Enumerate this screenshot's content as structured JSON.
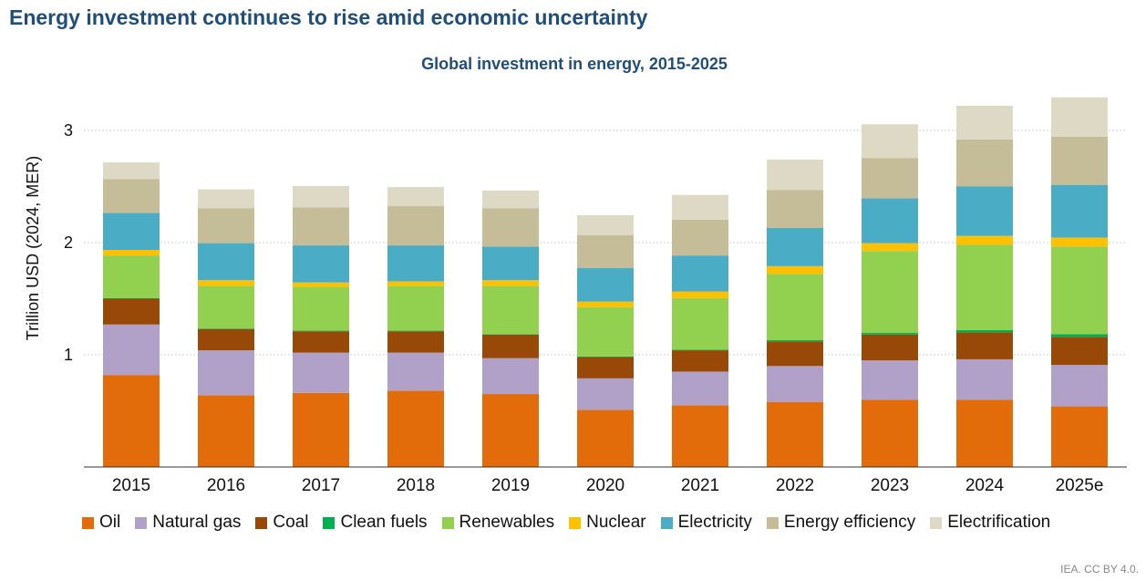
{
  "headline": "Energy investment continues to rise amid economic uncertainty",
  "credit": "IEA. CC BY 4.0.",
  "chart_data": {
    "type": "bar",
    "stacked": true,
    "title": "Global investment in energy, 2015-2025",
    "ylabel": "Trillion USD (2024, MER)",
    "xlabel": "",
    "ylim": [
      0,
      3.3
    ],
    "yticks": [
      1,
      2,
      3
    ],
    "grid": true,
    "legend_position": "bottom",
    "categories": [
      "2015",
      "2016",
      "2017",
      "2018",
      "2019",
      "2020",
      "2021",
      "2022",
      "2023",
      "2024",
      "2025e"
    ],
    "series": [
      {
        "name": "Oil",
        "color": "#e36c0a",
        "values": [
          0.82,
          0.64,
          0.66,
          0.68,
          0.65,
          0.51,
          0.55,
          0.58,
          0.6,
          0.6,
          0.54
        ]
      },
      {
        "name": "Natural gas",
        "color": "#b1a0c7",
        "values": [
          0.45,
          0.4,
          0.36,
          0.34,
          0.32,
          0.28,
          0.3,
          0.32,
          0.35,
          0.36,
          0.37
        ]
      },
      {
        "name": "Coal",
        "color": "#984807",
        "values": [
          0.23,
          0.19,
          0.19,
          0.19,
          0.21,
          0.19,
          0.19,
          0.22,
          0.23,
          0.24,
          0.25
        ]
      },
      {
        "name": "Clean fuels",
        "color": "#00b050",
        "values": [
          0.005,
          0.005,
          0.005,
          0.005,
          0.005,
          0.005,
          0.005,
          0.01,
          0.015,
          0.02,
          0.025
        ]
      },
      {
        "name": "Renewables",
        "color": "#92d050",
        "values": [
          0.38,
          0.38,
          0.39,
          0.4,
          0.43,
          0.44,
          0.46,
          0.59,
          0.73,
          0.76,
          0.78
        ]
      },
      {
        "name": "Nuclear",
        "color": "#ffc000",
        "values": [
          0.05,
          0.05,
          0.04,
          0.04,
          0.05,
          0.05,
          0.06,
          0.07,
          0.07,
          0.08,
          0.08
        ]
      },
      {
        "name": "Electricity",
        "color": "#4bacc6",
        "values": [
          0.33,
          0.33,
          0.33,
          0.32,
          0.3,
          0.3,
          0.32,
          0.34,
          0.4,
          0.44,
          0.47
        ]
      },
      {
        "name": "Energy efficiency",
        "color": "#c4bd97",
        "values": [
          0.3,
          0.31,
          0.34,
          0.35,
          0.34,
          0.29,
          0.32,
          0.34,
          0.36,
          0.42,
          0.43
        ]
      },
      {
        "name": "Electrification",
        "color": "#ddd9c4",
        "values": [
          0.15,
          0.17,
          0.19,
          0.17,
          0.16,
          0.18,
          0.22,
          0.27,
          0.3,
          0.3,
          0.35
        ]
      }
    ]
  }
}
